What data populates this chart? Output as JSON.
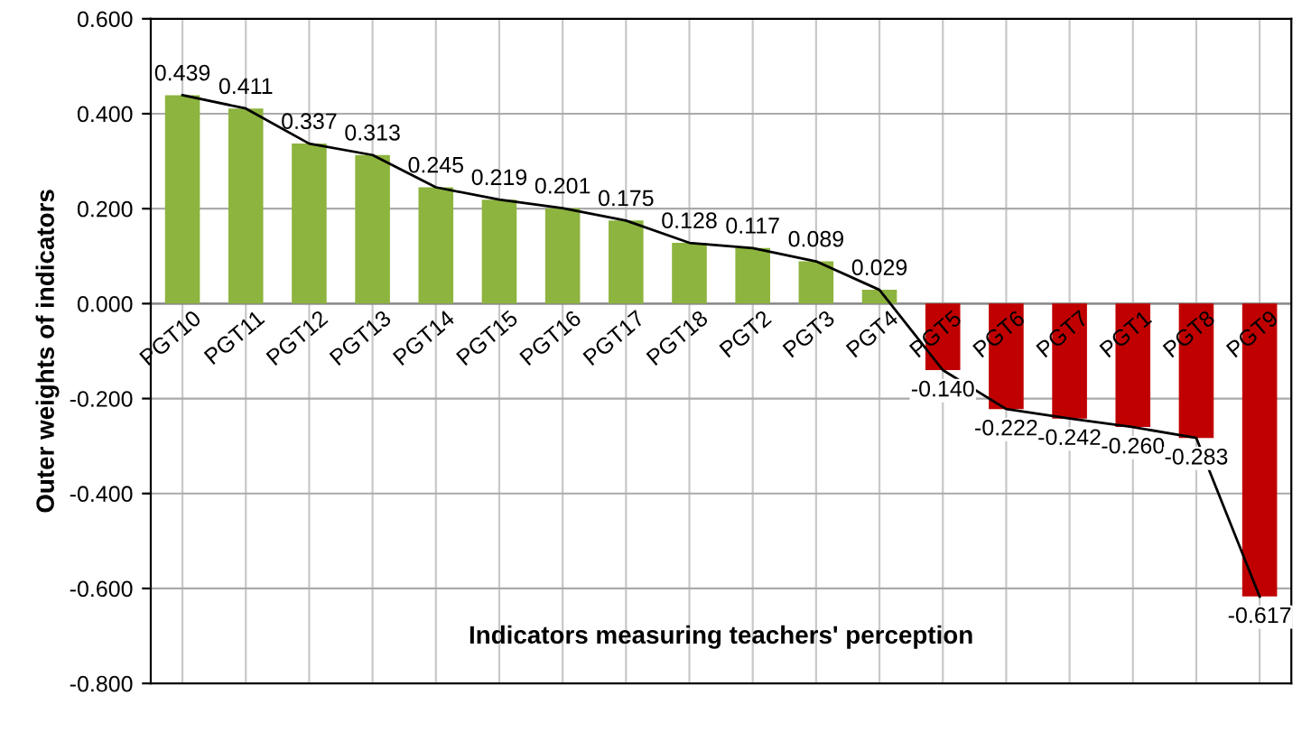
{
  "chart_data": {
    "type": "bar",
    "xlabel": "Indicators measuring teachers' perception",
    "ylabel": "Outer weights of indicators",
    "categories": [
      "PGT10",
      "PGT11",
      "PGT12",
      "PGT13",
      "PGT14",
      "PGT15",
      "PGT16",
      "PGT17",
      "PGT18",
      "PGT2",
      "PGT3",
      "PGT4",
      "PGT5",
      "PGT6",
      "PGT7",
      "PGT1",
      "PGT8",
      "PGT9"
    ],
    "series": [
      {
        "values": [
          0.439,
          0.411,
          0.337,
          0.313,
          0.245,
          0.219,
          0.201,
          0.175,
          0.128,
          0.117,
          0.089,
          0.029,
          -0.14,
          -0.222,
          -0.242,
          -0.26,
          -0.283,
          -0.617
        ],
        "colors": [
          "#8db43e",
          "#8db43e",
          "#8db43e",
          "#8db43e",
          "#8db43e",
          "#8db43e",
          "#8db43e",
          "#8db43e",
          "#8db43e",
          "#8db43e",
          "#8db43e",
          "#8db43e",
          "#c00000",
          "#c00000",
          "#c00000",
          "#c00000",
          "#c00000",
          "#c00000"
        ],
        "value_labels": [
          "0.439",
          "0.411",
          "0.337",
          "0.313",
          "0.245",
          "0.219",
          "0.201",
          "0.175",
          "0.128",
          "0.117",
          "0.089",
          "0.029",
          "-0.140",
          "-0.222",
          "-0.242",
          "-0.260",
          "-0.283",
          "-0.617"
        ]
      },
      {
        "type": "line",
        "color": "#000000",
        "values": [
          0.439,
          0.411,
          0.337,
          0.313,
          0.245,
          0.219,
          0.201,
          0.175,
          0.128,
          0.117,
          0.089,
          0.029,
          -0.14,
          -0.222,
          -0.242,
          -0.26,
          -0.283,
          -0.617
        ]
      }
    ],
    "ylim": [
      -0.8,
      0.6
    ],
    "yticks": [
      {
        "value": -0.8,
        "label": "-0.800"
      },
      {
        "value": -0.6,
        "label": "-0.600"
      },
      {
        "value": -0.4,
        "label": "-0.400"
      },
      {
        "value": -0.2,
        "label": "-0.200"
      },
      {
        "value": 0,
        "label": "0.000"
      },
      {
        "value": 0.2,
        "label": "0.200"
      },
      {
        "value": 0.4,
        "label": "0.400"
      },
      {
        "value": 0.6,
        "label": "0.600"
      }
    ],
    "grid": true,
    "marker": "none",
    "line_style": "solid"
  }
}
